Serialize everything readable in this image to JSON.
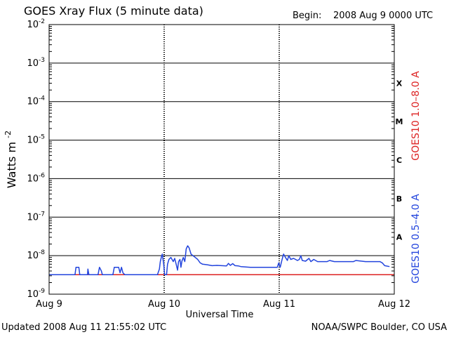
{
  "header": {
    "title": "GOES Xray Flux (5 minute data)",
    "begin_label": "Begin:",
    "begin_value": "2008 Aug 9 0000 UTC"
  },
  "footer": {
    "updated": "Updated 2008 Aug 11 21:55:02 UTC",
    "source": "NOAA/SWPC Boulder, CO USA"
  },
  "chart_data": {
    "type": "line",
    "title": "GOES Xray Flux (5 minute data)",
    "xlabel": "Universal Time",
    "ylabel": "Watts m",
    "ylabel_superscript": "-2",
    "yscale": "log",
    "ylim": [
      1e-09,
      0.01
    ],
    "xlim": [
      0,
      72
    ],
    "x_unit": "hours since 2008 Aug 9 0000 UTC",
    "x_ticks": [
      {
        "x": 0,
        "label": "Aug 9"
      },
      {
        "x": 24,
        "label": "Aug 10"
      },
      {
        "x": 48,
        "label": "Aug 11"
      },
      {
        "x": 72,
        "label": "Aug 12"
      }
    ],
    "y_ticks": [
      {
        "exp": -9
      },
      {
        "exp": -8
      },
      {
        "exp": -7
      },
      {
        "exp": -6
      },
      {
        "exp": -5
      },
      {
        "exp": -4
      },
      {
        "exp": -3
      },
      {
        "exp": -2
      }
    ],
    "flare_classes": [
      {
        "label": "A",
        "exp": -8
      },
      {
        "label": "B",
        "exp": -7
      },
      {
        "label": "C",
        "exp": -6
      },
      {
        "label": "M",
        "exp": -5
      },
      {
        "label": "X",
        "exp": -4
      }
    ],
    "grid": true,
    "series": [
      {
        "name": "GOES10 1.0–8.0 A",
        "color": "#dd2222",
        "points": [
          [
            0,
            3.2e-09
          ],
          [
            72,
            3.2e-09
          ]
        ]
      },
      {
        "name": "GOES10 0.5–4.0 A",
        "color": "#2244dd",
        "points": [
          [
            0,
            3.2e-09
          ],
          [
            5,
            3.2e-09
          ],
          [
            5.4,
            3.2e-09
          ],
          [
            5.6,
            5e-09
          ],
          [
            6.2,
            5e-09
          ],
          [
            6.4,
            3.2e-09
          ],
          [
            8.0,
            3.2e-09
          ],
          [
            8.1,
            4.5e-09
          ],
          [
            8.3,
            3.2e-09
          ],
          [
            10.2,
            3.2e-09
          ],
          [
            10.5,
            5e-09
          ],
          [
            10.9,
            4e-09
          ],
          [
            11.1,
            3.2e-09
          ],
          [
            13.3,
            3.2e-09
          ],
          [
            13.6,
            5e-09
          ],
          [
            14.5,
            5e-09
          ],
          [
            14.8,
            3.6e-09
          ],
          [
            15.1,
            5e-09
          ],
          [
            15.4,
            3.6e-09
          ],
          [
            15.8,
            3.2e-09
          ],
          [
            22.6,
            3.2e-09
          ],
          [
            23.0,
            4.5e-09
          ],
          [
            23.2,
            7e-09
          ],
          [
            23.4,
            9e-09
          ],
          [
            23.6,
            1.1e-08
          ],
          [
            23.9,
            6e-09
          ],
          [
            24.1,
            3.2e-09
          ],
          [
            24.5,
            3.2e-09
          ],
          [
            24.7,
            6e-09
          ],
          [
            25.0,
            8e-09
          ],
          [
            25.4,
            9e-09
          ],
          [
            25.9,
            7e-09
          ],
          [
            26.2,
            8.5e-09
          ],
          [
            26.5,
            6e-09
          ],
          [
            26.8,
            4.2e-09
          ],
          [
            27.0,
            7e-09
          ],
          [
            27.3,
            8e-09
          ],
          [
            27.5,
            5e-09
          ],
          [
            27.7,
            7.2e-09
          ],
          [
            28.0,
            9e-09
          ],
          [
            28.3,
            7e-09
          ],
          [
            28.6,
            1.5e-08
          ],
          [
            28.9,
            1.8e-08
          ],
          [
            29.2,
            1.6e-08
          ],
          [
            29.6,
            1.1e-08
          ],
          [
            30.0,
            1e-08
          ],
          [
            30.5,
            9e-09
          ],
          [
            31.0,
            8e-09
          ],
          [
            31.5,
            6.5e-09
          ],
          [
            32.0,
            6e-09
          ],
          [
            33.0,
            5.8e-09
          ],
          [
            34.0,
            5.5e-09
          ],
          [
            35.0,
            5.6e-09
          ],
          [
            36.0,
            5.5e-09
          ],
          [
            37.0,
            5.4e-09
          ],
          [
            37.4,
            6.3e-09
          ],
          [
            37.8,
            5.6e-09
          ],
          [
            38.3,
            6.2e-09
          ],
          [
            38.8,
            5.5e-09
          ],
          [
            39.5,
            5.4e-09
          ],
          [
            40.0,
            5.2e-09
          ],
          [
            42.0,
            5e-09
          ],
          [
            44.0,
            5e-09
          ],
          [
            46.0,
            5e-09
          ],
          [
            47.6,
            5e-09
          ],
          [
            47.9,
            6.5e-09
          ],
          [
            48.2,
            5e-09
          ],
          [
            48.6,
            8e-09
          ],
          [
            48.9,
            1.1e-08
          ],
          [
            49.3,
            9e-09
          ],
          [
            49.7,
            7.5e-09
          ],
          [
            50.0,
            1e-08
          ],
          [
            50.4,
            8e-09
          ],
          [
            51.0,
            8.5e-09
          ],
          [
            51.8,
            7.5e-09
          ],
          [
            52.2,
            8e-09
          ],
          [
            52.5,
            1e-08
          ],
          [
            52.8,
            7.5e-09
          ],
          [
            53.5,
            7.2e-09
          ],
          [
            54.2,
            8.5e-09
          ],
          [
            54.6,
            7e-09
          ],
          [
            55.2,
            8e-09
          ],
          [
            56.0,
            7e-09
          ],
          [
            57.0,
            7e-09
          ],
          [
            58.0,
            7e-09
          ],
          [
            58.5,
            7.5e-09
          ],
          [
            59.5,
            7e-09
          ],
          [
            62.0,
            7e-09
          ],
          [
            63.5,
            7e-09
          ],
          [
            64.0,
            7.5e-09
          ],
          [
            66.0,
            7e-09
          ],
          [
            68.0,
            7e-09
          ],
          [
            69.0,
            7e-09
          ],
          [
            69.5,
            6.5e-09
          ],
          [
            70.0,
            5.5e-09
          ],
          [
            71.0,
            5.2e-09
          ]
        ]
      }
    ]
  }
}
